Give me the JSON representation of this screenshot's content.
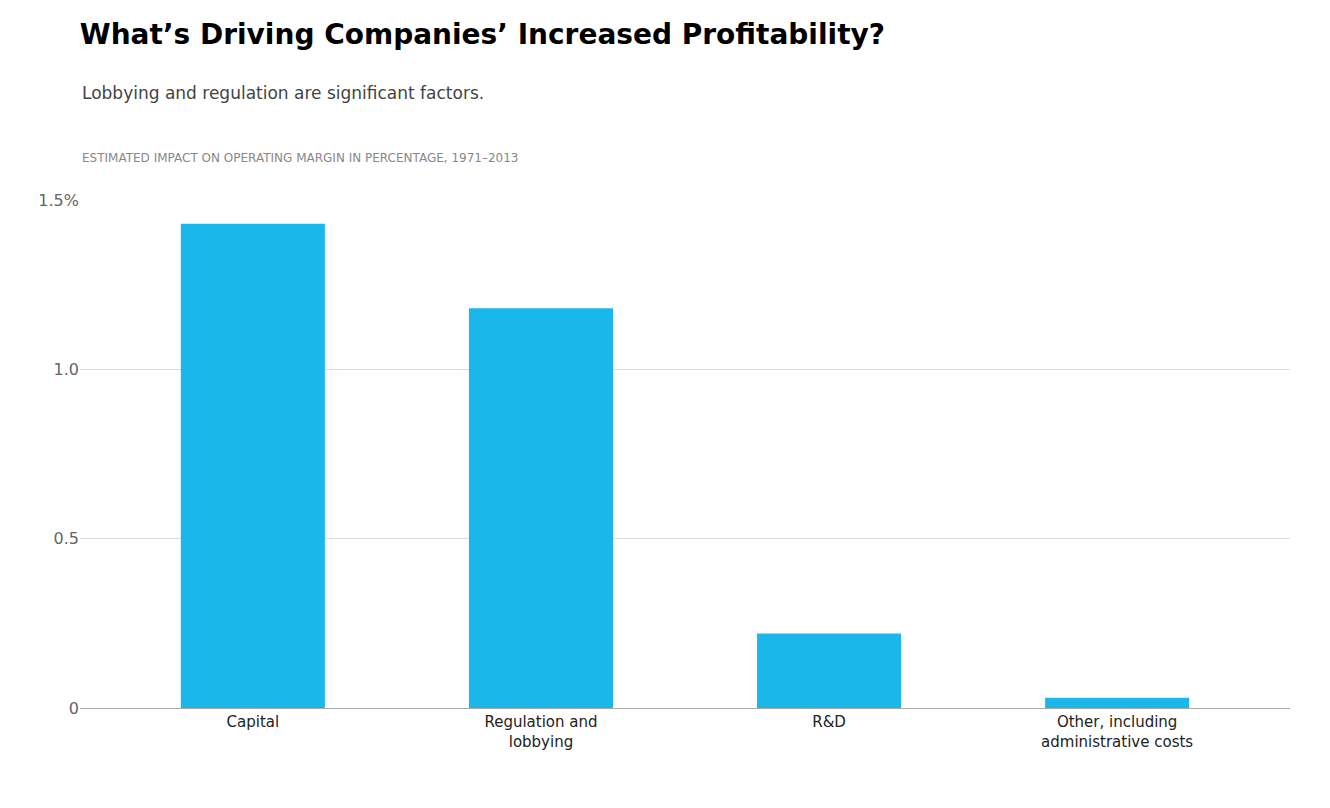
{
  "chart_data": {
    "type": "bar",
    "title": "What’s Driving Companies’ Increased Profitability?",
    "subtitle": "Lobbying and regulation are significant factors.",
    "ylabel": "ESTIMATED IMPACT ON OPERATING MARGIN IN PERCENTAGE, 1971–2013",
    "categories": [
      "Capital",
      "Regulation and\nlobbying",
      "R&D",
      "Other, including\nadministrative costs"
    ],
    "values": [
      1.43,
      1.18,
      0.22,
      0.03
    ],
    "color": "#1ab7ea",
    "ylim": [
      0,
      1.5
    ],
    "yticks": [
      0,
      0.5,
      {
        "value": 1.0,
        "label": "1.0"
      },
      {
        "value": 1.5,
        "label": "1.5%"
      }
    ],
    "grid": true
  }
}
